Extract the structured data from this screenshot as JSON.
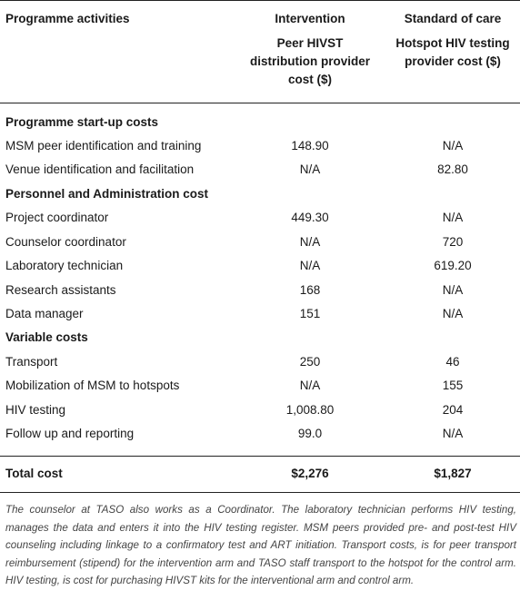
{
  "header": {
    "col1": "Programme activities",
    "col2_top": "Intervention",
    "col2_sub": [
      "Peer HIVST",
      "distribution provider",
      "cost ($)"
    ],
    "col3_top": "Standard of care",
    "col3_sub": [
      "Hotspot HIV testing",
      "provider cost ($)"
    ]
  },
  "sections": [
    {
      "title": "Programme start-up costs"
    },
    {
      "title": "Personnel and Administration cost"
    },
    {
      "title": "Variable costs"
    }
  ],
  "rows": [
    {
      "label": "MSM peer identification and training",
      "intervention": "148.90",
      "soc": "N/A"
    },
    {
      "label": "Venue identification and facilitation",
      "intervention": "N/A",
      "soc": "82.80"
    },
    {
      "label": "Project coordinator",
      "intervention": "449.30",
      "soc": "N/A"
    },
    {
      "label": "Counselor coordinator",
      "intervention": "N/A",
      "soc": "720"
    },
    {
      "label": "Laboratory technician",
      "intervention": "N/A",
      "soc": "619.20"
    },
    {
      "label": "Research assistants",
      "intervention": "168",
      "soc": "N/A"
    },
    {
      "label": "Data manager",
      "intervention": "151",
      "soc": "N/A"
    },
    {
      "label": "Transport",
      "intervention": "250",
      "soc": "46"
    },
    {
      "label": "Mobilization of MSM to hotspots",
      "intervention": "N/A",
      "soc": "155"
    },
    {
      "label": "HIV testing",
      "intervention": "1,008.80",
      "soc": "204"
    },
    {
      "label": "Follow up and reporting",
      "intervention": "99.0",
      "soc": "N/A"
    }
  ],
  "total": {
    "label": "Total cost",
    "intervention": "$2,276",
    "soc": "$1,827"
  },
  "footnote": "The counselor at TASO also works as a Coordinator. The laboratory technician performs HIV testing, manages the data and enters it into the HIV testing register. MSM peers provided pre- and post-test HIV counseling including linkage to a confirmatory test and ART initiation. Transport costs, is for peer transport reimbursement (stipend) for the intervention arm and TASO staff transport to the hotspot for the control arm. HIV testing, is cost for purchasing HIVST kits for the interventional arm and control arm."
}
